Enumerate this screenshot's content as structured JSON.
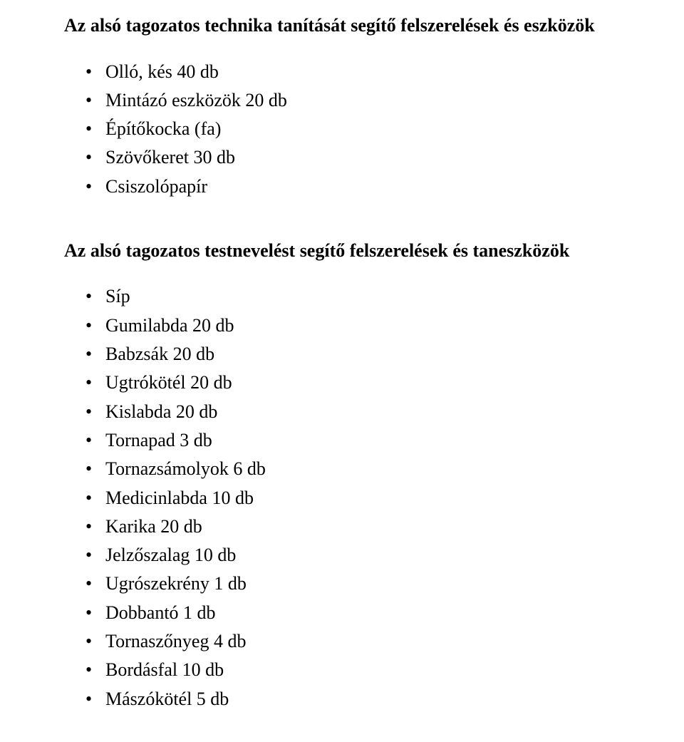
{
  "section1": {
    "heading": "Az alsó tagozatos technika tanítását segítő felszerelések és eszközök",
    "items": [
      "Olló, kés   40 db",
      "Mintázó eszközök  20 db",
      "Építőkocka (fa)",
      "Szövőkeret 30 db",
      "Csiszolópapír"
    ]
  },
  "section2": {
    "heading": "Az alsó tagozatos testnevelést segítő felszerelések és taneszközök",
    "items": [
      "Síp",
      "Gumilabda 20 db",
      "Babzsák  20 db",
      "Ugtrókötél 20 db",
      "Kislabda 20 db",
      "Tornapad 3 db",
      "Tornazsámolyok 6 db",
      "Medicinlabda  10 db",
      "Karika 20 db",
      "Jelzőszalag 10 db",
      "Ugrószekrény 1 db",
      "Dobbantó  1 db",
      "Tornaszőnyeg 4 db",
      "Bordásfal 10 db",
      "Mászókötél 5 db"
    ]
  }
}
